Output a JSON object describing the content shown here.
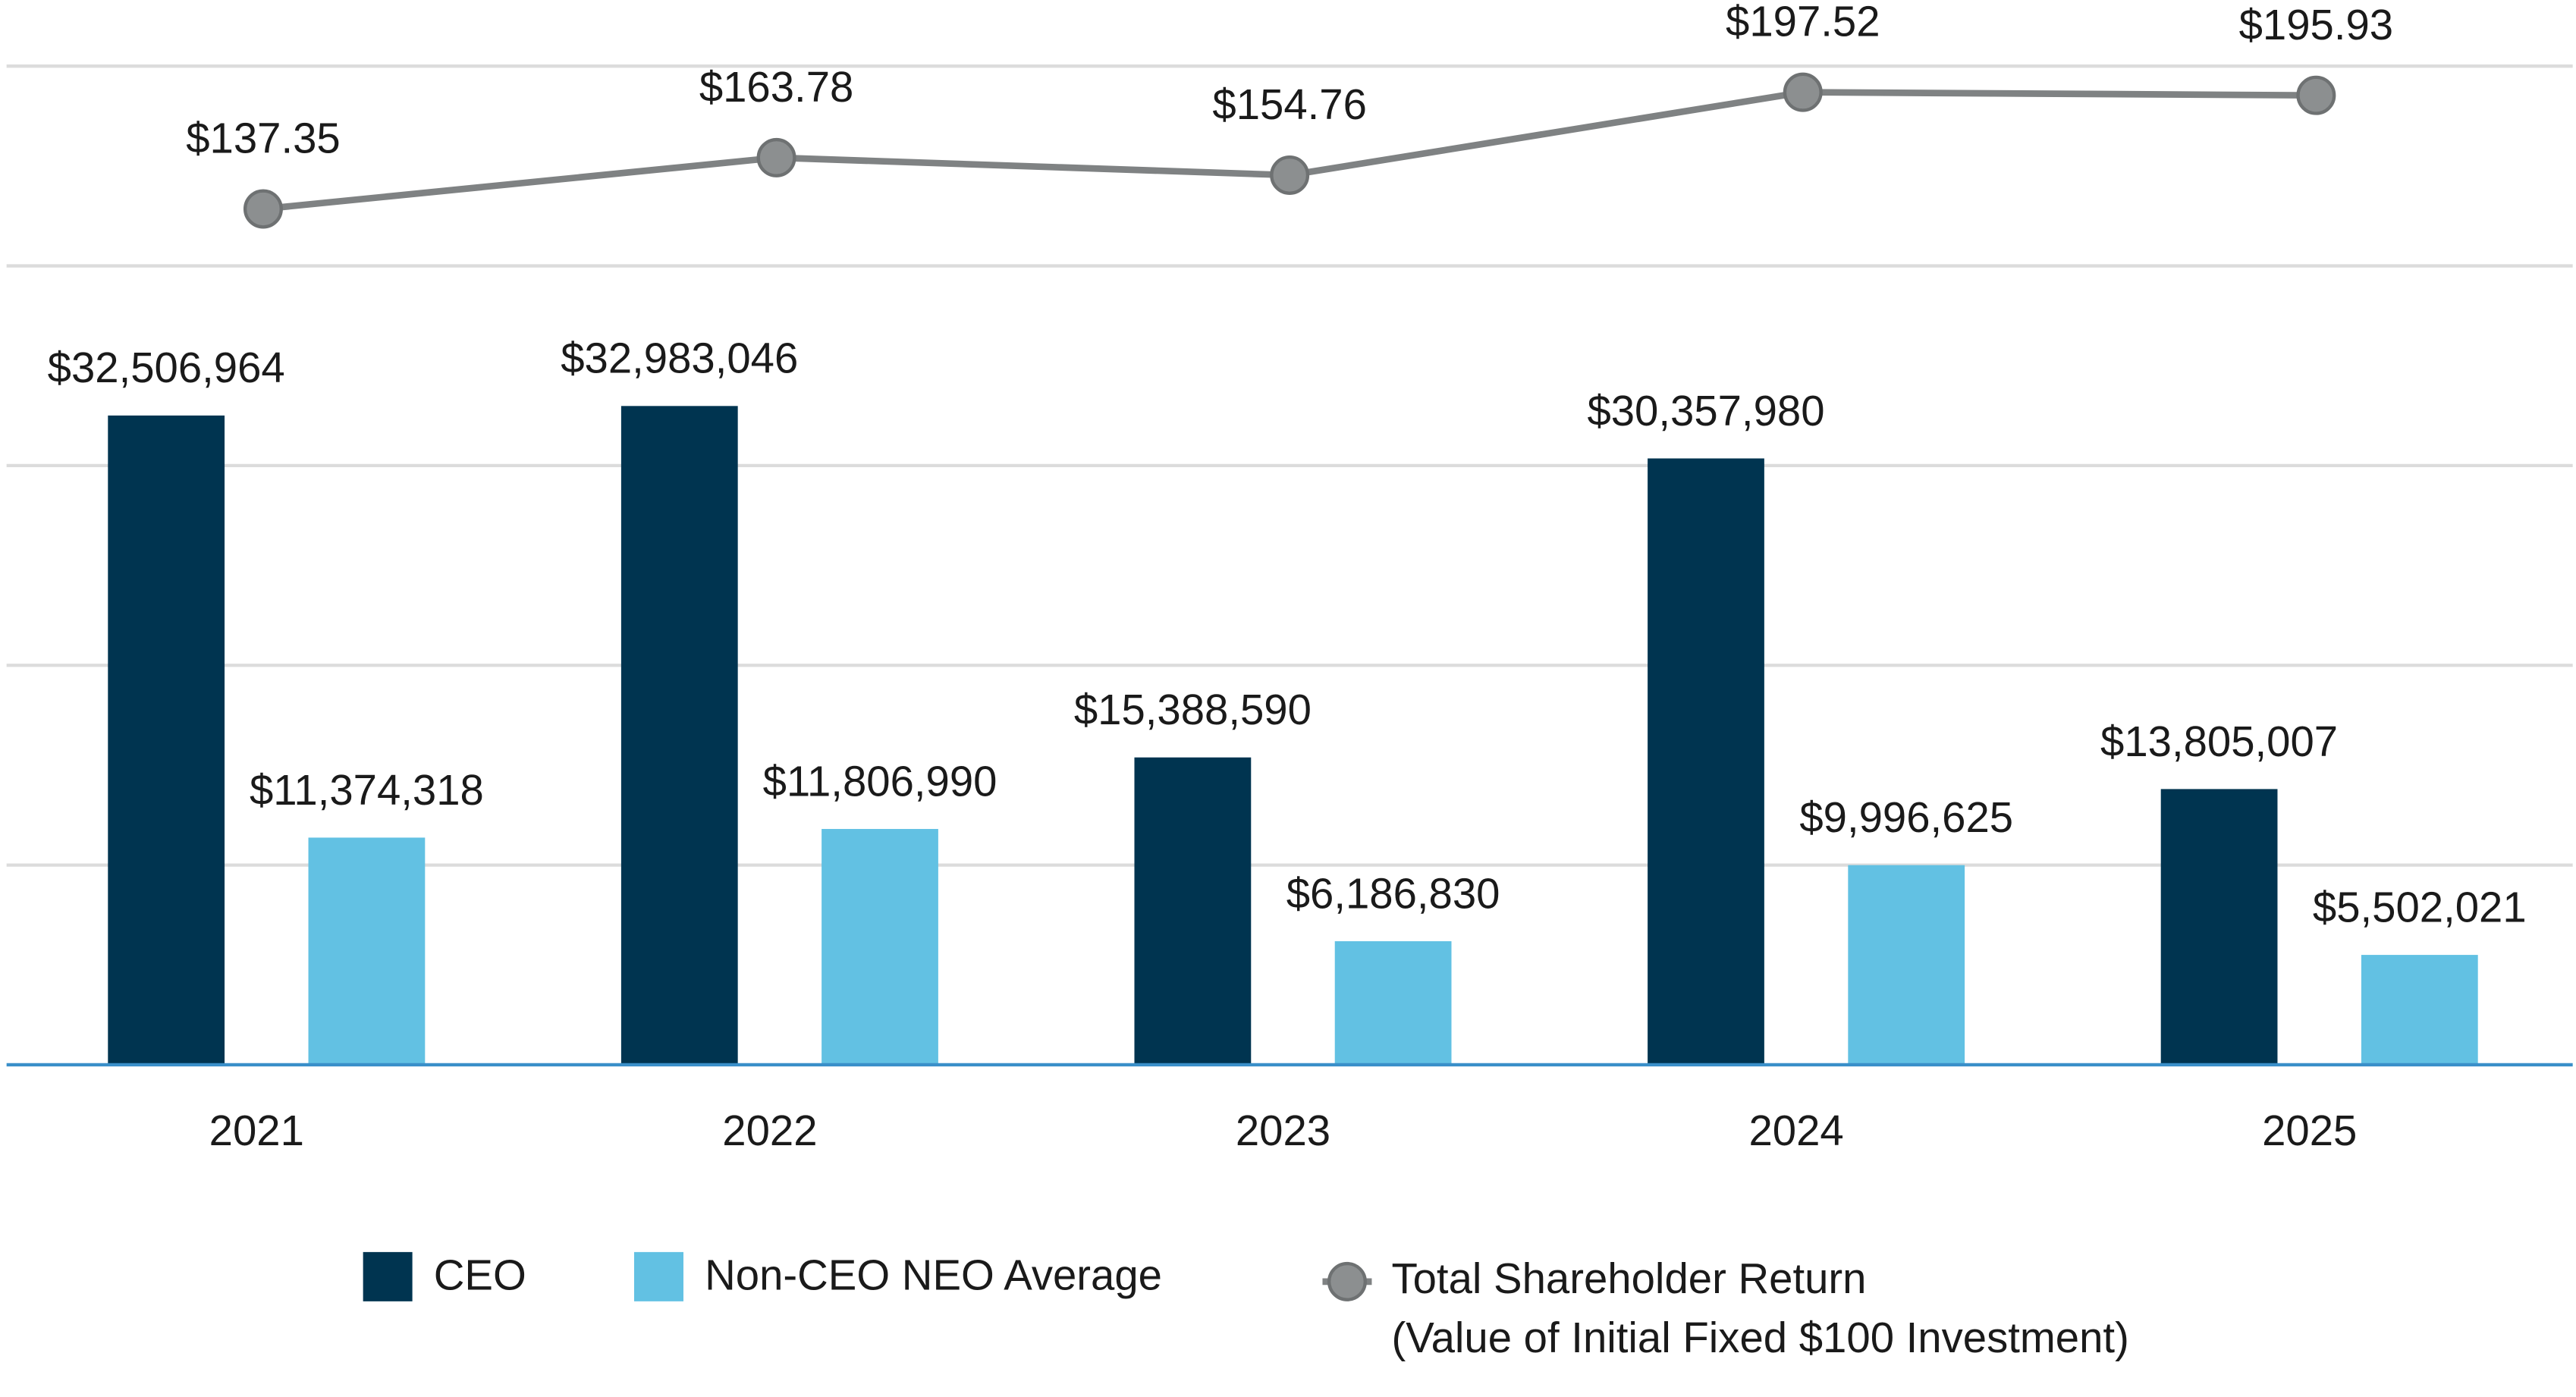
{
  "chart_data": {
    "type": "bar",
    "categories": [
      "2021",
      "2022",
      "2023",
      "2024",
      "2025"
    ],
    "series": [
      {
        "name": "CEO",
        "type": "bar",
        "color": "#003450",
        "values": [
          32506964,
          32983046,
          15388590,
          30357980,
          13805007
        ],
        "value_labels": [
          "$32,506,964",
          "$32,983,046",
          "$15,388,590",
          "$30,357,980",
          "$13,805,007"
        ]
      },
      {
        "name": "Non-CEO NEO Average",
        "type": "bar",
        "color": "#62c1e3",
        "values": [
          11374318,
          11806990,
          6186830,
          9996625,
          5502021
        ],
        "value_labels": [
          "$11,374,318",
          "$11,806,990",
          "$6,186,830",
          "$9,996,625",
          "$5,502,021"
        ]
      },
      {
        "name": "Total Shareholder Return\n(Value of Initial Fixed $100 Investment)",
        "type": "line",
        "axis": "y2",
        "color": "#7f8283",
        "values": [
          137.35,
          163.78,
          154.76,
          197.52,
          195.93
        ],
        "value_labels": [
          "$137.35",
          "$163.78",
          "$154.76",
          "$197.52",
          "$195.93"
        ]
      }
    ],
    "ylim": [
      0,
      50000000
    ],
    "yticks": [
      0,
      10000000,
      20000000,
      30000000,
      40000000,
      50000000
    ],
    "y2lim": [
      -304,
      211
    ],
    "grid": true,
    "legend": "bottom"
  }
}
